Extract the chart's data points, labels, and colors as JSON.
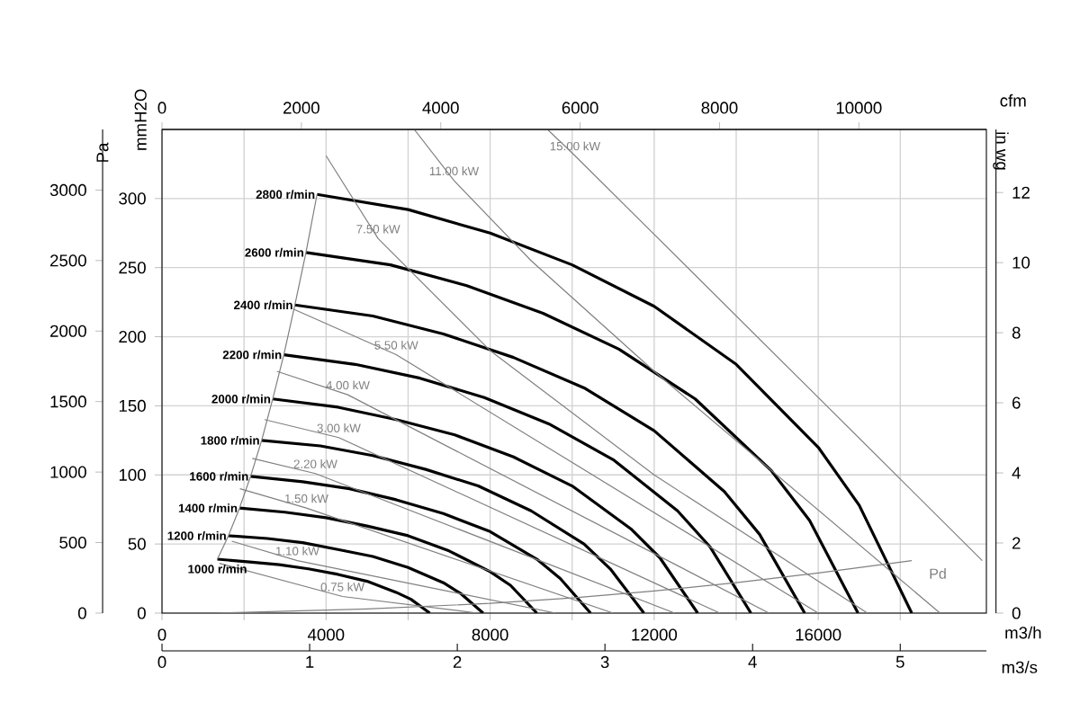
{
  "chart_data": {
    "type": "line",
    "xlabel": "m3/h",
    "ylabel": "mmH2O",
    "y2label": "in wg",
    "y3label": "Pa",
    "x2label": "cfm",
    "xlim": [
      0,
      20100
    ],
    "ylim": [
      0,
      350
    ],
    "y2lim": [
      0,
      13.8
    ],
    "y3lim": [
      0,
      3430
    ],
    "x2lim": [
      0,
      11830
    ],
    "xticks": [
      0,
      {
        "value": 2000,
        "label": null
      },
      4000,
      {
        "value": 6000,
        "label": null
      },
      8000,
      {
        "value": 10000,
        "label": null
      },
      12000,
      {
        "value": 14000,
        "label": null
      },
      16000,
      {
        "value": 18000,
        "label": null
      }
    ],
    "yticks": [
      0,
      50,
      100,
      150,
      200,
      250,
      300
    ],
    "y2ticks": [
      0,
      2,
      4,
      6,
      8,
      10,
      12
    ],
    "y3ticks": [
      0,
      500,
      1000,
      1500,
      2000,
      2500,
      3000
    ],
    "x2ticks": [
      0,
      2000,
      4000,
      6000,
      8000,
      10000
    ],
    "grid": true,
    "series": [
      {
        "name": "1000 r/min",
        "color": "#000000",
        "x": [
          1350,
          2140,
          2860,
          3570,
          4290,
          5000,
          5710,
          6070,
          6530
        ],
        "values": [
          39,
          37,
          35,
          32,
          28,
          23,
          15,
          10,
          0
        ]
      },
      {
        "name": "1200 r/min",
        "color": "#000000",
        "x": [
          1620,
          2570,
          3430,
          4290,
          5140,
          6000,
          6860,
          7290,
          7830
        ],
        "values": [
          56,
          54,
          51,
          46,
          41,
          33,
          22,
          14,
          0
        ]
      },
      {
        "name": "1400 r/min",
        "color": "#000000",
        "x": [
          1890,
          3000,
          4000,
          5000,
          6000,
          7000,
          8000,
          8500,
          9140
        ],
        "values": [
          76,
          73,
          69,
          63,
          56,
          45,
          30,
          20,
          0
        ]
      },
      {
        "name": "1600 r/min",
        "color": "#000000",
        "x": [
          2160,
          3430,
          4570,
          5710,
          6860,
          8000,
          9140,
          9710,
          10450
        ],
        "values": [
          99,
          95,
          90,
          82,
          72,
          59,
          39,
          25,
          0
        ]
      },
      {
        "name": "1800 r/min",
        "color": "#000000",
        "x": [
          2430,
          3860,
          5140,
          6430,
          7710,
          9000,
          10290,
          10930,
          11750
        ],
        "values": [
          125,
          121,
          114,
          104,
          92,
          74,
          50,
          32,
          0
        ]
      },
      {
        "name": "2000 r/min",
        "color": "#000000",
        "x": [
          2700,
          4290,
          5710,
          7140,
          8570,
          10000,
          11430,
          12140,
          13060
        ],
        "values": [
          155,
          149,
          140,
          129,
          113,
          92,
          61,
          40,
          0
        ]
      },
      {
        "name": "2200 r/min",
        "color": "#000000",
        "x": [
          2970,
          4710,
          6290,
          7860,
          9430,
          11000,
          12570,
          13360,
          14360
        ],
        "values": [
          187,
          180,
          170,
          156,
          137,
          111,
          74,
          48,
          0
        ]
      },
      {
        "name": "2400 r/min",
        "color": "#000000",
        "x": [
          3240,
          5140,
          6860,
          8570,
          10290,
          12000,
          13710,
          14570,
          15670
        ],
        "values": [
          223,
          215,
          202,
          185,
          163,
          132,
          88,
          57,
          0
        ]
      },
      {
        "name": "2600 r/min",
        "color": "#000000",
        "x": [
          3510,
          5570,
          7430,
          9290,
          11140,
          13000,
          14860,
          15790,
          16970
        ],
        "values": [
          261,
          252,
          237,
          217,
          191,
          155,
          103,
          67,
          0
        ]
      },
      {
        "name": "2800 r/min",
        "color": "#000000",
        "x": [
          3780,
          6000,
          8000,
          10000,
          12000,
          14000,
          16000,
          17000,
          18280
        ],
        "values": [
          303,
          292,
          275,
          252,
          222,
          180,
          120,
          78,
          0
        ]
      },
      {
        "color": "#808080",
        "x": [
          3780,
          3510,
          3240,
          2970,
          2700,
          2430,
          2160,
          1890,
          1620,
          1350
        ],
        "values": [
          303,
          261,
          223,
          187,
          155,
          125,
          99,
          76,
          56,
          39
        ]
      },
      {
        "name": "0.75 kW",
        "color": "#808080",
        "x": [
          1400,
          4400,
          7700
        ],
        "values": [
          36,
          12,
          0
        ]
      },
      {
        "name": "1.10 kW",
        "color": "#808080",
        "x": [
          1700,
          3300,
          9600
        ],
        "values": [
          52,
          38,
          0
        ]
      },
      {
        "name": "1.50 kW",
        "color": "#808080",
        "x": [
          1900,
          3520,
          11000
        ],
        "values": [
          90,
          76,
          0
        ]
      },
      {
        "name": "2.20 kW",
        "color": "#808080",
        "x": [
          2200,
          3740,
          12500
        ],
        "values": [
          112,
          101,
          0
        ]
      },
      {
        "name": "3.00 kW",
        "color": "#808080",
        "x": [
          2500,
          4310,
          13600
        ],
        "values": [
          140,
          127,
          0
        ]
      },
      {
        "name": "4.00 kW",
        "color": "#808080",
        "x": [
          2800,
          4530,
          14800
        ],
        "values": [
          175,
          158,
          0
        ]
      },
      {
        "name": "5.50 kW",
        "color": "#808080",
        "x": [
          3200,
          5710,
          16000
        ],
        "values": [
          220,
          187,
          0
        ]
      },
      {
        "name": "7.50 kW",
        "color": "#808080",
        "x": [
          4000,
          5270,
          8000,
          12000,
          17200
        ],
        "values": [
          331,
          271,
          190,
          100,
          0
        ]
      },
      {
        "name": "11.00 kW",
        "color": "#808080",
        "x": [
          6150,
          7120,
          9000,
          12000,
          18970
        ],
        "values": [
          350,
          313,
          255,
          175,
          0
        ]
      },
      {
        "name": "15.00 kW",
        "color": "#808080",
        "x": [
          9400,
          10070,
          20000
        ],
        "values": [
          350,
          331,
          38
        ]
      },
      {
        "color": "#808080",
        "x": [
          1360,
          5000,
          8000,
          10000,
          12000,
          14000,
          16000,
          18280
        ],
        "values": [
          0,
          3,
          7,
          11,
          16,
          22,
          29,
          38
        ]
      }
    ],
    "annotations": [
      {
        "text": "Pd",
        "x": 18280,
        "y": 38
      },
      "m3/s",
      "0",
      "1",
      "2",
      "3",
      "4",
      "5"
    ]
  }
}
